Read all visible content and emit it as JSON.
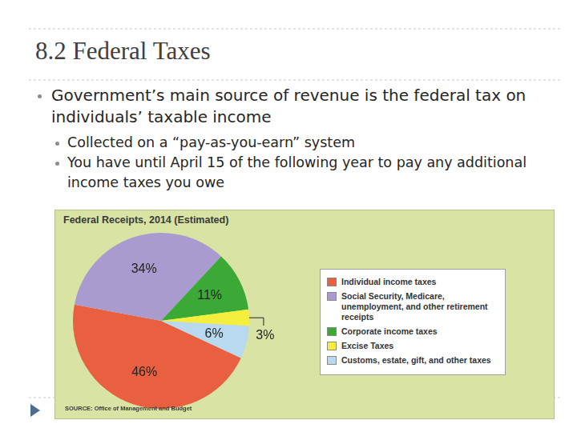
{
  "slide": {
    "title": "8.2 Federal Taxes",
    "bullets": [
      {
        "text": "Government’s main source of revenue is the federal tax on individuals’ taxable income",
        "sub": [
          "Collected on a “pay-as-you-earn” system",
          "You have until April 15 of the following year to pay any additional income taxes you owe"
        ]
      }
    ]
  },
  "chart_data": {
    "type": "pie",
    "title": "Federal Receipts, 2014 (Estimated)",
    "categories": [
      "Individual income taxes",
      "Social Security, Medicare, unemployment, and other retirement receipts",
      "Corporate income taxes",
      "Excise Taxes",
      "Customs, estate, gift, and other taxes"
    ],
    "values": [
      46,
      34,
      11,
      3,
      6
    ],
    "value_labels": [
      "46%",
      "34%",
      "11%",
      "3%",
      "6%"
    ],
    "colors": [
      "#e8603f",
      "#a99bd0",
      "#3aa935",
      "#f4ee3c",
      "#b9d9f0"
    ],
    "data_labels": true,
    "legend": "right",
    "source": "SOURCE: Office of Management and Budget"
  }
}
